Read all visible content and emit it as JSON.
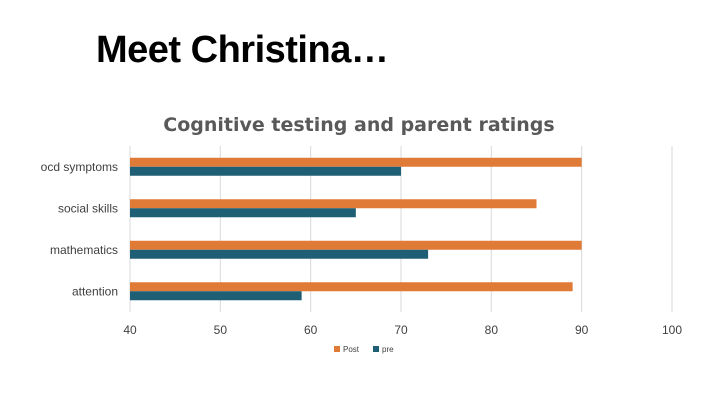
{
  "slide": {
    "title": "Meet Christina…"
  },
  "colors": {
    "post": "#e07a37",
    "pre": "#1f5f75"
  },
  "chart_data": {
    "type": "bar",
    "orientation": "horizontal",
    "title": "Cognitive testing and parent ratings",
    "categories": [
      "attention",
      "mathematics",
      "social skills",
      "ocd symptoms"
    ],
    "series": [
      {
        "name": "Post",
        "values": [
          89,
          90,
          85,
          90
        ]
      },
      {
        "name": "pre",
        "values": [
          59,
          73,
          65,
          70
        ]
      }
    ],
    "xlim": [
      40,
      100
    ],
    "xticks": [
      40,
      50,
      60,
      70,
      80,
      90,
      100
    ],
    "grid": true,
    "legend": "bottom"
  }
}
